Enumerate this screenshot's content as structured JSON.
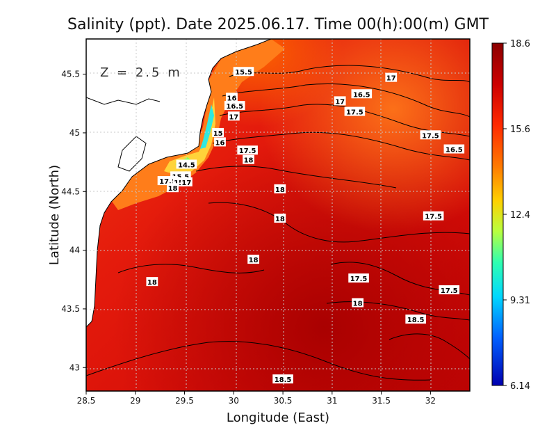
{
  "chart_data": {
    "type": "heatmap",
    "title": "Salinity (ppt). Date 2025.06.17. Time 00(h):00(m) GMT",
    "xlabel": "Longitude (East)",
    "ylabel": "Latitude (North)",
    "xlim": [
      28.5,
      32.4
    ],
    "ylim": [
      42.8,
      45.8
    ],
    "x_ticks": [
      "28.5",
      "29",
      "29.5",
      "30",
      "30.5",
      "31",
      "31.5",
      "32"
    ],
    "y_ticks": [
      "43",
      "43.5",
      "44",
      "44.5",
      "45",
      "45.5"
    ],
    "annotation": "Z = 2.5 m",
    "grid": true,
    "colorbar": {
      "min": 6.14,
      "max": 18.6,
      "tick_labels": [
        "18.6",
        "15.6",
        "12.4",
        "9.31",
        "6.14"
      ],
      "colors": [
        "#8b0000",
        "#cc0000",
        "#ff2a00",
        "#ff7a00",
        "#ffd000",
        "#b8ff40",
        "#30ffb0",
        "#00d8ff",
        "#0060ff",
        "#0000b0"
      ]
    },
    "contour_labels": [
      {
        "label": "15.5",
        "lon": 30.1,
        "lat": 45.52
      },
      {
        "label": "17",
        "lon": 31.6,
        "lat": 45.47
      },
      {
        "label": "16.5",
        "lon": 31.3,
        "lat": 45.33
      },
      {
        "label": "17",
        "lon": 31.08,
        "lat": 45.27
      },
      {
        "label": "17.5",
        "lon": 31.23,
        "lat": 45.18
      },
      {
        "label": "16",
        "lon": 29.98,
        "lat": 45.3
      },
      {
        "label": "16.5",
        "lon": 30.01,
        "lat": 45.23
      },
      {
        "label": "17",
        "lon": 30.0,
        "lat": 45.14
      },
      {
        "label": "15",
        "lon": 29.84,
        "lat": 45.0
      },
      {
        "label": "16",
        "lon": 29.86,
        "lat": 44.92
      },
      {
        "label": "17.5",
        "lon": 30.14,
        "lat": 44.85
      },
      {
        "label": "18",
        "lon": 30.15,
        "lat": 44.77
      },
      {
        "label": "17.5",
        "lon": 32.0,
        "lat": 44.98
      },
      {
        "label": "16.5",
        "lon": 32.24,
        "lat": 44.86
      },
      {
        "label": "14.5",
        "lon": 29.52,
        "lat": 44.73
      },
      {
        "label": "15.5",
        "lon": 29.46,
        "lat": 44.63
      },
      {
        "label": "17.5",
        "lon": 29.33,
        "lat": 44.59
      },
      {
        "label": "15",
        "lon": 29.44,
        "lat": 44.58
      },
      {
        "label": "17",
        "lon": 29.52,
        "lat": 44.58
      },
      {
        "label": "18",
        "lon": 29.38,
        "lat": 44.53
      },
      {
        "label": "18",
        "lon": 30.47,
        "lat": 44.52
      },
      {
        "label": "18",
        "lon": 30.47,
        "lat": 44.27
      },
      {
        "label": "17.5",
        "lon": 32.03,
        "lat": 44.29
      },
      {
        "label": "18",
        "lon": 30.2,
        "lat": 43.92
      },
      {
        "label": "18",
        "lon": 29.17,
        "lat": 43.73
      },
      {
        "label": "17.5",
        "lon": 31.27,
        "lat": 43.76
      },
      {
        "label": "17.5",
        "lon": 32.19,
        "lat": 43.66
      },
      {
        "label": "18",
        "lon": 31.26,
        "lat": 43.55
      },
      {
        "label": "18.5",
        "lon": 31.85,
        "lat": 43.41
      },
      {
        "label": "18.5",
        "lon": 30.5,
        "lat": 42.9
      }
    ]
  }
}
